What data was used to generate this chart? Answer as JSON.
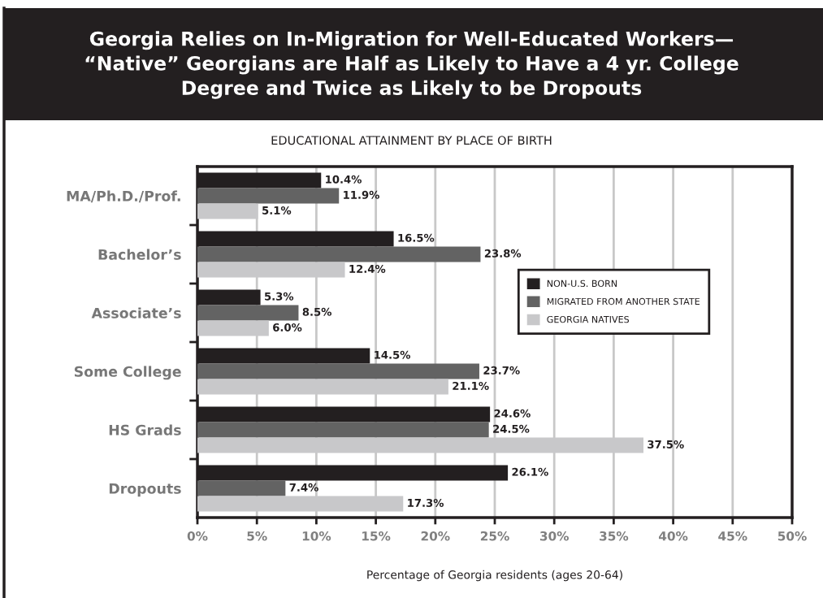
{
  "chart_data": {
    "type": "bar",
    "orientation": "horizontal",
    "title": "Georgia Relies on In-Migration for Well-Educated Workers—\n“Native” Georgians are Half as Likely to Have a 4 yr. College\nDegree and Twice as Likely to be Dropouts",
    "subtitle": "EDUCATIONAL ATTAINMENT BY PLACE OF BIRTH",
    "xlabel": "Percentage of Georgia residents (ages 20-64)",
    "categories": [
      "MA/Ph.D./Prof.",
      "Bachelor’s",
      "Associate’s",
      "Some College",
      "HS Grads",
      "Dropouts"
    ],
    "series": [
      {
        "name": "NON-U.S. BORN",
        "color": "#231f20",
        "values": [
          10.4,
          16.5,
          5.3,
          14.5,
          24.6,
          26.1
        ],
        "value_labels": [
          "10.4%",
          "16.5%",
          "5.3%",
          "14.5%",
          "24.6%",
          "26.1%"
        ]
      },
      {
        "name": "MIGRATED FROM ANOTHER STATE",
        "color": "#636363",
        "values": [
          11.9,
          23.8,
          8.5,
          23.7,
          24.5,
          7.4
        ],
        "value_labels": [
          "11.9%",
          "23.8%",
          "8.5%",
          "23.7%",
          "24.5%",
          "7.4%"
        ]
      },
      {
        "name": "GEORGIA NATIVES",
        "color": "#c8c8ca",
        "values": [
          5.1,
          12.4,
          6.0,
          21.1,
          37.5,
          17.3
        ],
        "value_labels": [
          "5.1%",
          "12.4%",
          "6.0%",
          "21.1%",
          "37.5%",
          "17.3%"
        ]
      }
    ],
    "xlim": [
      0,
      50
    ],
    "xticks": [
      {
        "value": 0,
        "label": "0%"
      },
      {
        "value": 5,
        "label": "5%"
      },
      {
        "value": 10,
        "label": "10%"
      },
      {
        "value": 15,
        "label": "15%"
      },
      {
        "value": 20,
        "label": "20%"
      },
      {
        "value": 25,
        "label": "25%"
      },
      {
        "value": 30,
        "label": "30%"
      },
      {
        "value": 35,
        "label": "35%"
      },
      {
        "value": 40,
        "label": "40%"
      },
      {
        "value": 45,
        "label": "45%"
      },
      {
        "value": 50,
        "label": "50%"
      }
    ],
    "grid": "x",
    "legend": "center right"
  }
}
